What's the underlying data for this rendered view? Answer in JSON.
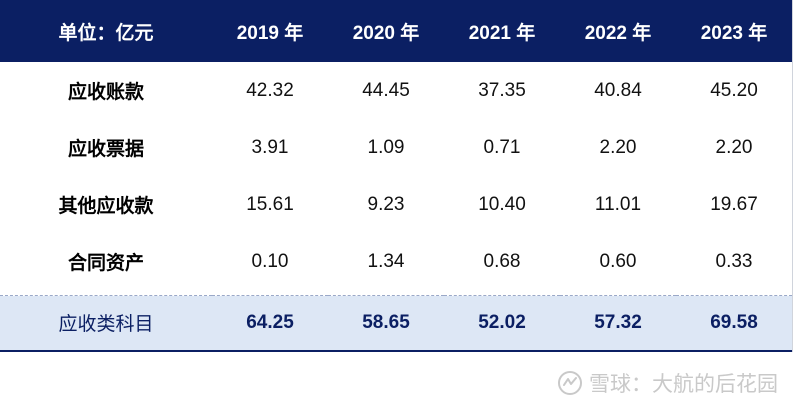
{
  "table": {
    "unit_label": "单位：亿元",
    "years": [
      "2019 年",
      "2020 年",
      "2021 年",
      "2022 年",
      "2023 年"
    ],
    "rows": [
      {
        "label": "应收账款",
        "values": [
          "42.32",
          "44.45",
          "37.35",
          "40.84",
          "45.20"
        ]
      },
      {
        "label": "应收票据",
        "values": [
          "3.91",
          "1.09",
          "0.71",
          "2.20",
          "2.20"
        ]
      },
      {
        "label": "其他应收款",
        "values": [
          "15.61",
          "9.23",
          "10.40",
          "11.01",
          "19.67"
        ]
      },
      {
        "label": "合同资产",
        "values": [
          "0.10",
          "1.34",
          "0.68",
          "0.60",
          "0.33"
        ]
      }
    ],
    "total": {
      "label": "应收类科目",
      "values": [
        "64.25",
        "58.65",
        "52.02",
        "57.32",
        "69.58"
      ]
    }
  },
  "watermark": {
    "text": "雪球：大航的后花园",
    "icon": "xueqiu-logo-icon"
  },
  "colors": {
    "header_bg": "#0b1f63",
    "total_bg": "#dde7f5",
    "total_text": "#0b1f63"
  }
}
